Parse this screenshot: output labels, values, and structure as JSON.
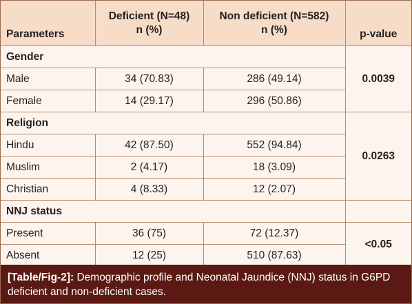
{
  "table": {
    "headers": {
      "parameters": "Parameters",
      "deficient_line1": "Deficient (N=48)",
      "deficient_line2": "n (%)",
      "nondeficient_line1": "Non deficient (N=582)",
      "nondeficient_line2": "n (%)",
      "pvalue": "p-value"
    },
    "sections": [
      {
        "title": "Gender",
        "p_value": "0.0039",
        "rows": [
          {
            "label": "Male",
            "deficient": "34 (70.83)",
            "non_deficient": "286 (49.14)"
          },
          {
            "label": "Female",
            "deficient": "14 (29.17)",
            "non_deficient": "296 (50.86)"
          }
        ]
      },
      {
        "title": "Religion",
        "p_value": "0.0263",
        "rows": [
          {
            "label": "Hindu",
            "deficient": "42 (87.50)",
            "non_deficient": "552 (94.84)"
          },
          {
            "label": "Muslim",
            "deficient": "2 (4.17)",
            "non_deficient": "18 (3.09)"
          },
          {
            "label": "Christian",
            "deficient": "4 (8.33)",
            "non_deficient": "12 (2.07)"
          }
        ]
      },
      {
        "title": "NNJ status",
        "p_value": "<0.05",
        "rows": [
          {
            "label": "Present",
            "deficient": "36 (75)",
            "non_deficient": "72 (12.37)"
          },
          {
            "label": "Absent",
            "deficient": "12 (25)",
            "non_deficient": "510 (87.63)"
          }
        ]
      }
    ]
  },
  "caption": {
    "label": "[Table/Fig-2]:",
    "text": " Demographic profile and Neonatal Jaundice (NNJ) status in G6PD deficient and non-deficient cases."
  },
  "colors": {
    "header_bg": "#f7dcc8",
    "body_bg": "#fdf4ed",
    "caption_bg": "#5a1a13",
    "border": "#b98a6c"
  }
}
